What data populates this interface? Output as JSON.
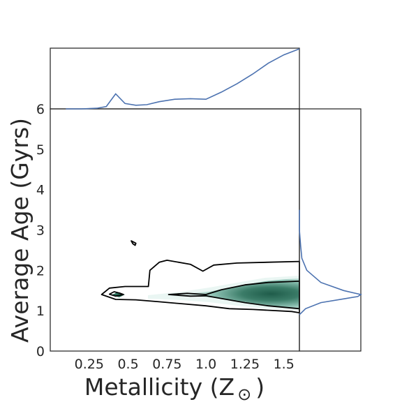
{
  "chart_data": {
    "type": "joint-kde",
    "xlabel": "Metallicity (Z",
    "xlabel_symbol": "⊙",
    "xlabel_close": ")",
    "ylabel": "Average Age (Gyrs)",
    "xlim": [
      0.0,
      1.6
    ],
    "ylim": [
      0,
      6
    ],
    "x_ticks": [
      {
        "value": 0.25,
        "label": "0.25"
      },
      {
        "value": 0.5,
        "label": "0.5"
      },
      {
        "value": 0.75,
        "label": "0.75"
      },
      {
        "value": 1.0,
        "label": "1.0"
      },
      {
        "value": 1.25,
        "label": "1.25"
      },
      {
        "value": 1.5,
        "label": "1.5"
      }
    ],
    "y_ticks": [
      {
        "value": 0,
        "label": "0"
      },
      {
        "value": 1,
        "label": "1"
      },
      {
        "value": 2,
        "label": "2"
      },
      {
        "value": 3,
        "label": "3"
      },
      {
        "value": 4,
        "label": "4"
      },
      {
        "value": 5,
        "label": "5"
      },
      {
        "value": 6,
        "label": "6"
      }
    ],
    "grid": false,
    "colors": {
      "marginal_line": "#4c72b0",
      "contour_line": "#000000",
      "density_high": "#1f5c4a",
      "density_mid": "#4f8f7c",
      "density_low": "#bfe0dc",
      "axes": "#262626"
    },
    "top_marginal": {
      "x": [
        0.1,
        0.2,
        0.3,
        0.36,
        0.42,
        0.48,
        0.55,
        0.62,
        0.7,
        0.8,
        0.9,
        1.0,
        1.1,
        1.2,
        1.3,
        1.4,
        1.5,
        1.6
      ],
      "density": [
        0.0,
        0.0,
        0.01,
        0.04,
        0.25,
        0.09,
        0.06,
        0.07,
        0.12,
        0.16,
        0.17,
        0.16,
        0.28,
        0.42,
        0.58,
        0.76,
        0.9,
        1.0
      ]
    },
    "right_marginal": {
      "y": [
        0.9,
        1.05,
        1.2,
        1.3,
        1.35,
        1.4,
        1.5,
        1.7,
        2.0,
        2.3,
        2.6,
        3.0,
        3.5
      ],
      "density": [
        0.0,
        0.1,
        0.35,
        0.75,
        0.95,
        1.0,
        0.72,
        0.35,
        0.12,
        0.04,
        0.02,
        0.0,
        0.0
      ]
    },
    "contours": [
      {
        "level": "outer",
        "points": [
          [
            0.33,
            1.4
          ],
          [
            0.38,
            1.56
          ],
          [
            0.48,
            1.6
          ],
          [
            0.63,
            1.6
          ],
          [
            0.64,
            2.0
          ],
          [
            0.7,
            2.2
          ],
          [
            0.75,
            2.25
          ],
          [
            0.9,
            2.15
          ],
          [
            0.98,
            1.98
          ],
          [
            1.05,
            2.13
          ],
          [
            1.2,
            2.18
          ],
          [
            1.6,
            2.22
          ],
          [
            1.6,
            0.95
          ],
          [
            1.55,
            0.98
          ],
          [
            1.3,
            1.03
          ],
          [
            1.15,
            1.05
          ],
          [
            1.0,
            1.12
          ],
          [
            0.7,
            1.22
          ],
          [
            0.55,
            1.27
          ],
          [
            0.42,
            1.28
          ],
          [
            0.33,
            1.4
          ]
        ]
      },
      {
        "level": "inner",
        "points": [
          [
            0.76,
            1.4
          ],
          [
            0.88,
            1.43
          ],
          [
            1.0,
            1.4
          ],
          [
            1.1,
            1.52
          ],
          [
            1.25,
            1.64
          ],
          [
            1.4,
            1.7
          ],
          [
            1.6,
            1.73
          ],
          [
            1.6,
            1.05
          ],
          [
            1.4,
            1.12
          ],
          [
            1.25,
            1.2
          ],
          [
            1.1,
            1.3
          ],
          [
            1.0,
            1.37
          ],
          [
            0.9,
            1.36
          ],
          [
            0.76,
            1.4
          ]
        ]
      },
      {
        "level": "small-core",
        "points": [
          [
            0.38,
            1.41
          ],
          [
            0.41,
            1.47
          ],
          [
            0.45,
            1.43
          ],
          [
            0.47,
            1.4
          ],
          [
            0.42,
            1.36
          ],
          [
            0.38,
            1.41
          ]
        ]
      },
      {
        "level": "outlier",
        "points": [
          [
            0.52,
            2.73
          ],
          [
            0.55,
            2.67
          ],
          [
            0.545,
            2.62
          ],
          [
            0.53,
            2.66
          ],
          [
            0.52,
            2.73
          ]
        ]
      }
    ]
  }
}
